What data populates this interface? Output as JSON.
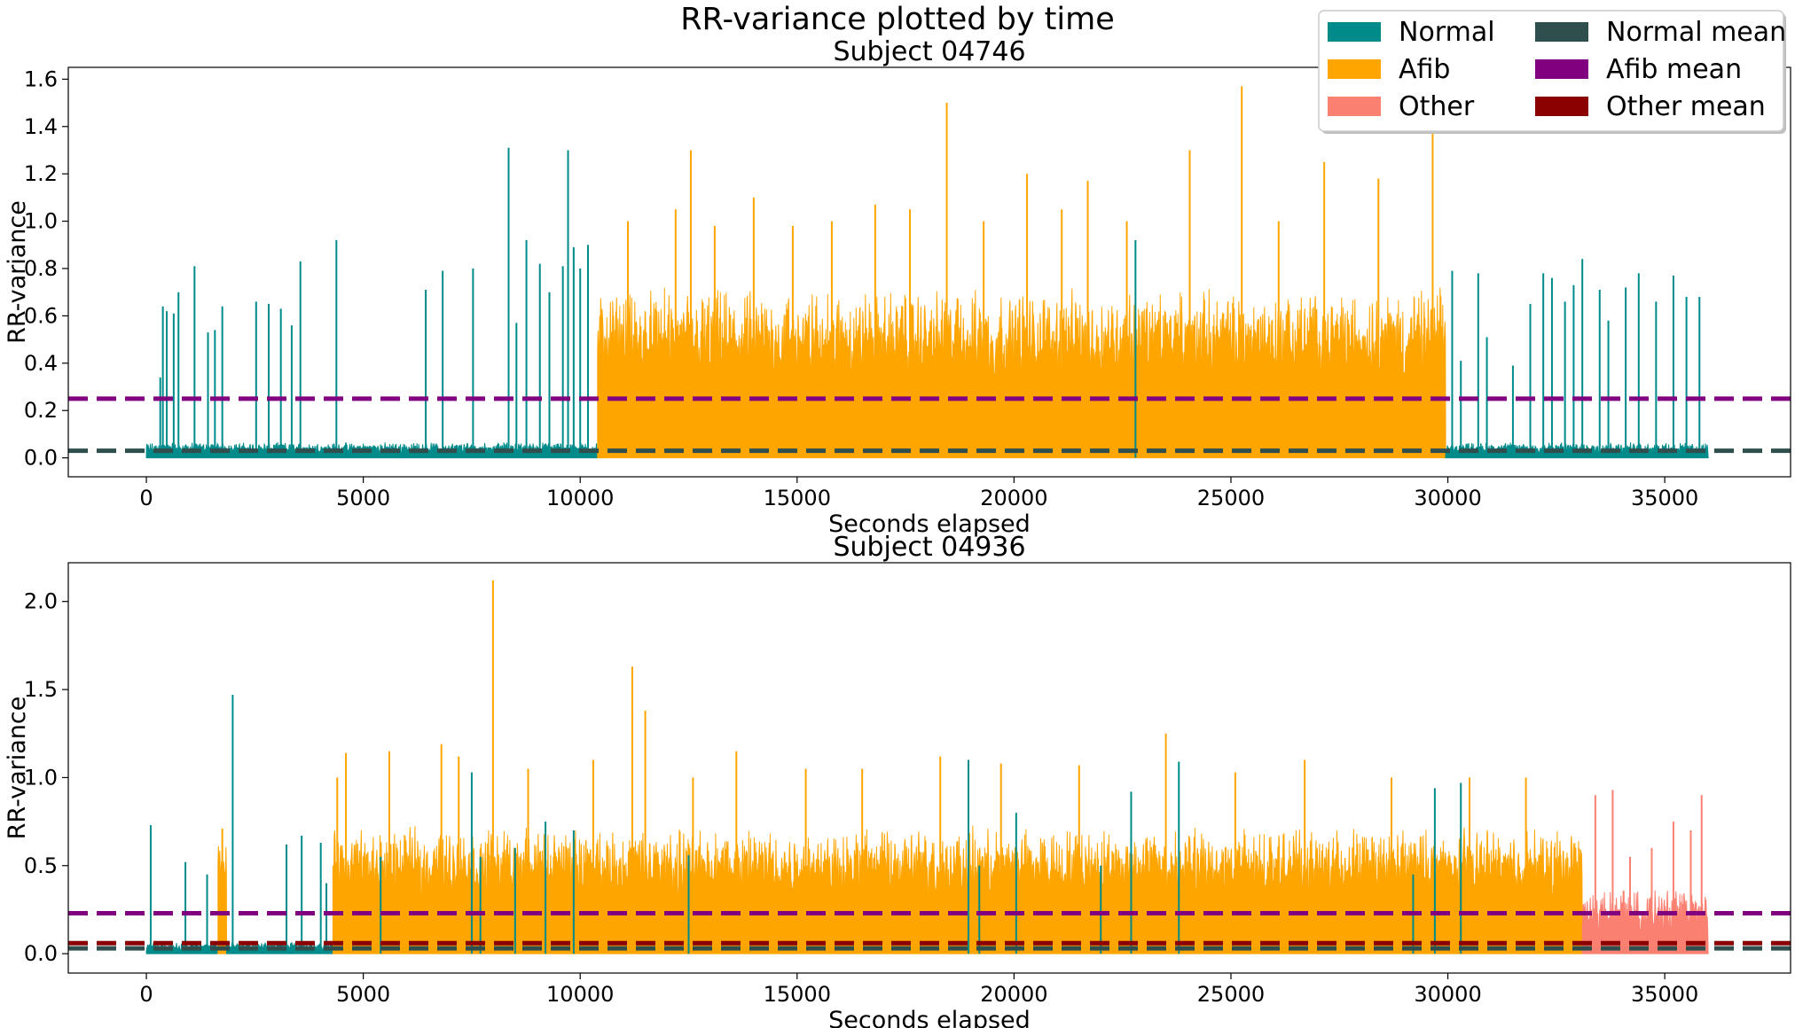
{
  "figure": {
    "title": "RR-variance plotted by time"
  },
  "legend": {
    "placement": "upper-right",
    "columns": 2,
    "entries": [
      {
        "label": "Normal",
        "color": "#008B8B"
      },
      {
        "label": "Afib",
        "color": "#FFA500"
      },
      {
        "label": "Other",
        "color": "#FA8072"
      },
      {
        "label": "Normal mean",
        "color": "#2F4F4F"
      },
      {
        "label": "Afib mean",
        "color": "#800080"
      },
      {
        "label": "Other mean",
        "color": "#8B0000"
      }
    ]
  },
  "chart_data": [
    {
      "type": "area",
      "title": "Subject 04746",
      "xlabel": "Seconds elapsed",
      "ylabel": "RR-variance",
      "xlim": [
        -1800,
        37900
      ],
      "ylim": [
        -0.08,
        1.65
      ],
      "xticks": [
        0,
        5000,
        10000,
        15000,
        20000,
        25000,
        30000,
        35000
      ],
      "xtick_labels": [
        "0",
        "5000",
        "10000",
        "15000",
        "20000",
        "25000",
        "30000",
        "35000"
      ],
      "yticks": [
        0.0,
        0.2,
        0.4,
        0.6,
        0.8,
        1.0,
        1.2,
        1.4,
        1.6
      ],
      "ytick_labels": [
        "0.0",
        "0.2",
        "0.4",
        "0.6",
        "0.8",
        "1.0",
        "1.2",
        "1.4",
        "1.6"
      ],
      "grid": false,
      "segments": [
        {
          "class": "Normal",
          "start": 0,
          "end": 10400
        },
        {
          "class": "Afib",
          "start": 10400,
          "end": 29950
        },
        {
          "class": "Normal",
          "start": 29950,
          "end": 36000
        }
      ],
      "spikes": [
        {
          "class": "Normal",
          "x": 320,
          "y": 0.34
        },
        {
          "class": "Normal",
          "x": 380,
          "y": 0.64
        },
        {
          "class": "Normal",
          "x": 470,
          "y": 0.62
        },
        {
          "class": "Normal",
          "x": 630,
          "y": 0.61
        },
        {
          "class": "Normal",
          "x": 740,
          "y": 0.7
        },
        {
          "class": "Normal",
          "x": 1110,
          "y": 0.81
        },
        {
          "class": "Normal",
          "x": 1420,
          "y": 0.53
        },
        {
          "class": "Normal",
          "x": 1580,
          "y": 0.54
        },
        {
          "class": "Normal",
          "x": 1750,
          "y": 0.64
        },
        {
          "class": "Normal",
          "x": 2530,
          "y": 0.66
        },
        {
          "class": "Normal",
          "x": 2820,
          "y": 0.65
        },
        {
          "class": "Normal",
          "x": 3100,
          "y": 0.63
        },
        {
          "class": "Normal",
          "x": 3350,
          "y": 0.56
        },
        {
          "class": "Normal",
          "x": 3550,
          "y": 0.83
        },
        {
          "class": "Normal",
          "x": 4380,
          "y": 0.92
        },
        {
          "class": "Normal",
          "x": 6440,
          "y": 0.71
        },
        {
          "class": "Normal",
          "x": 6830,
          "y": 0.79
        },
        {
          "class": "Normal",
          "x": 7530,
          "y": 0.8
        },
        {
          "class": "Normal",
          "x": 8350,
          "y": 1.31
        },
        {
          "class": "Normal",
          "x": 8530,
          "y": 0.57
        },
        {
          "class": "Normal",
          "x": 8760,
          "y": 0.92
        },
        {
          "class": "Normal",
          "x": 9070,
          "y": 0.82
        },
        {
          "class": "Normal",
          "x": 9290,
          "y": 0.7
        },
        {
          "class": "Normal",
          "x": 9600,
          "y": 0.81
        },
        {
          "class": "Normal",
          "x": 9720,
          "y": 1.3
        },
        {
          "class": "Normal",
          "x": 9850,
          "y": 0.89
        },
        {
          "class": "Normal",
          "x": 10000,
          "y": 0.8
        },
        {
          "class": "Normal",
          "x": 10180,
          "y": 0.9
        },
        {
          "class": "Afib",
          "x": 11100,
          "y": 1.0
        },
        {
          "class": "Afib",
          "x": 12200,
          "y": 1.05
        },
        {
          "class": "Afib",
          "x": 12550,
          "y": 1.3
        },
        {
          "class": "Afib",
          "x": 13100,
          "y": 0.98
        },
        {
          "class": "Afib",
          "x": 14000,
          "y": 1.1
        },
        {
          "class": "Afib",
          "x": 14900,
          "y": 0.98
        },
        {
          "class": "Afib",
          "x": 15800,
          "y": 1.0
        },
        {
          "class": "Afib",
          "x": 16800,
          "y": 1.07
        },
        {
          "class": "Afib",
          "x": 17600,
          "y": 1.05
        },
        {
          "class": "Afib",
          "x": 18450,
          "y": 1.5
        },
        {
          "class": "Afib",
          "x": 19300,
          "y": 1.0
        },
        {
          "class": "Afib",
          "x": 20300,
          "y": 1.2
        },
        {
          "class": "Afib",
          "x": 21100,
          "y": 1.05
        },
        {
          "class": "Afib",
          "x": 21700,
          "y": 1.17
        },
        {
          "class": "Afib",
          "x": 22600,
          "y": 1.0
        },
        {
          "class": "Afib",
          "x": 24050,
          "y": 1.3
        },
        {
          "class": "Afib",
          "x": 25250,
          "y": 1.57
        },
        {
          "class": "Afib",
          "x": 26100,
          "y": 1.0
        },
        {
          "class": "Afib",
          "x": 27150,
          "y": 1.25
        },
        {
          "class": "Afib",
          "x": 28400,
          "y": 1.18
        },
        {
          "class": "Afib",
          "x": 29650,
          "y": 1.38
        },
        {
          "class": "Normal",
          "x": 22800,
          "y": 0.92
        },
        {
          "class": "Normal",
          "x": 30100,
          "y": 0.79
        },
        {
          "class": "Normal",
          "x": 30300,
          "y": 0.41
        },
        {
          "class": "Normal",
          "x": 30700,
          "y": 0.78
        },
        {
          "class": "Normal",
          "x": 30900,
          "y": 0.51
        },
        {
          "class": "Normal",
          "x": 31500,
          "y": 0.39
        },
        {
          "class": "Normal",
          "x": 31900,
          "y": 0.65
        },
        {
          "class": "Normal",
          "x": 32200,
          "y": 0.78
        },
        {
          "class": "Normal",
          "x": 32400,
          "y": 0.76
        },
        {
          "class": "Normal",
          "x": 32700,
          "y": 0.66
        },
        {
          "class": "Normal",
          "x": 32900,
          "y": 0.73
        },
        {
          "class": "Normal",
          "x": 33100,
          "y": 0.84
        },
        {
          "class": "Normal",
          "x": 33500,
          "y": 0.71
        },
        {
          "class": "Normal",
          "x": 33700,
          "y": 0.58
        },
        {
          "class": "Normal",
          "x": 34100,
          "y": 0.72
        },
        {
          "class": "Normal",
          "x": 34400,
          "y": 0.78
        },
        {
          "class": "Normal",
          "x": 34800,
          "y": 0.66
        },
        {
          "class": "Normal",
          "x": 35200,
          "y": 0.77
        },
        {
          "class": "Normal",
          "x": 35500,
          "y": 0.68
        },
        {
          "class": "Normal",
          "x": 35800,
          "y": 0.68
        }
      ],
      "means": [
        {
          "class": "Normal mean",
          "value": 0.03
        },
        {
          "class": "Afib mean",
          "value": 0.25
        }
      ]
    },
    {
      "type": "area",
      "title": "Subject 04936",
      "xlabel": "Seconds elapsed",
      "ylabel": "RR-variance",
      "xlim": [
        -1800,
        37900
      ],
      "ylim": [
        -0.11,
        2.22
      ],
      "xticks": [
        0,
        5000,
        10000,
        15000,
        20000,
        25000,
        30000,
        35000
      ],
      "xtick_labels": [
        "0",
        "5000",
        "10000",
        "15000",
        "20000",
        "25000",
        "30000",
        "35000"
      ],
      "yticks": [
        0.0,
        0.5,
        1.0,
        1.5,
        2.0
      ],
      "ytick_labels": [
        "0.0",
        "0.5",
        "1.0",
        "1.5",
        "2.0"
      ],
      "grid": false,
      "segments": [
        {
          "class": "Normal",
          "start": 0,
          "end": 1650
        },
        {
          "class": "Afib",
          "start": 1650,
          "end": 1850
        },
        {
          "class": "Normal",
          "start": 1850,
          "end": 4300
        },
        {
          "class": "Afib",
          "start": 4300,
          "end": 33100
        },
        {
          "class": "Other",
          "start": 33100,
          "end": 36000
        }
      ],
      "spikes": [
        {
          "class": "Normal",
          "x": 100,
          "y": 0.73
        },
        {
          "class": "Normal",
          "x": 900,
          "y": 0.52
        },
        {
          "class": "Normal",
          "x": 1400,
          "y": 0.45
        },
        {
          "class": "Afib",
          "x": 1750,
          "y": 0.71
        },
        {
          "class": "Normal",
          "x": 1990,
          "y": 1.47
        },
        {
          "class": "Normal",
          "x": 3230,
          "y": 0.62
        },
        {
          "class": "Normal",
          "x": 3580,
          "y": 0.67
        },
        {
          "class": "Afib",
          "x": 4400,
          "y": 1.0
        },
        {
          "class": "Afib",
          "x": 4600,
          "y": 1.14
        },
        {
          "class": "Afib",
          "x": 5600,
          "y": 1.15
        },
        {
          "class": "Afib",
          "x": 6800,
          "y": 1.19
        },
        {
          "class": "Afib",
          "x": 7200,
          "y": 1.12
        },
        {
          "class": "Afib",
          "x": 7990,
          "y": 2.12
        },
        {
          "class": "Afib",
          "x": 8800,
          "y": 1.05
        },
        {
          "class": "Afib",
          "x": 10300,
          "y": 1.1
        },
        {
          "class": "Afib",
          "x": 11200,
          "y": 1.63
        },
        {
          "class": "Afib",
          "x": 11500,
          "y": 1.38
        },
        {
          "class": "Afib",
          "x": 12600,
          "y": 1.0
        },
        {
          "class": "Afib",
          "x": 13600,
          "y": 1.15
        },
        {
          "class": "Afib",
          "x": 15200,
          "y": 1.05
        },
        {
          "class": "Afib",
          "x": 16500,
          "y": 1.05
        },
        {
          "class": "Afib",
          "x": 18300,
          "y": 1.12
        },
        {
          "class": "Afib",
          "x": 19700,
          "y": 1.08
        },
        {
          "class": "Afib",
          "x": 21500,
          "y": 1.07
        },
        {
          "class": "Afib",
          "x": 23500,
          "y": 1.25
        },
        {
          "class": "Afib",
          "x": 25100,
          "y": 1.03
        },
        {
          "class": "Afib",
          "x": 26700,
          "y": 1.1
        },
        {
          "class": "Afib",
          "x": 28700,
          "y": 1.0
        },
        {
          "class": "Afib",
          "x": 30500,
          "y": 1.0
        },
        {
          "class": "Afib",
          "x": 31800,
          "y": 1.0
        },
        {
          "class": "Normal",
          "x": 4020,
          "y": 0.63
        },
        {
          "class": "Normal",
          "x": 4150,
          "y": 0.4
        },
        {
          "class": "Normal",
          "x": 5400,
          "y": 0.55
        },
        {
          "class": "Normal",
          "x": 7500,
          "y": 1.03
        },
        {
          "class": "Normal",
          "x": 7700,
          "y": 0.55
        },
        {
          "class": "Normal",
          "x": 8500,
          "y": 0.6
        },
        {
          "class": "Normal",
          "x": 9200,
          "y": 0.75
        },
        {
          "class": "Normal",
          "x": 9850,
          "y": 0.7
        },
        {
          "class": "Normal",
          "x": 12500,
          "y": 0.56
        },
        {
          "class": "Normal",
          "x": 18950,
          "y": 1.1
        },
        {
          "class": "Normal",
          "x": 19200,
          "y": 0.5
        },
        {
          "class": "Normal",
          "x": 20050,
          "y": 0.8
        },
        {
          "class": "Normal",
          "x": 22000,
          "y": 0.5
        },
        {
          "class": "Normal",
          "x": 22700,
          "y": 0.92
        },
        {
          "class": "Normal",
          "x": 23800,
          "y": 1.09
        },
        {
          "class": "Normal",
          "x": 29200,
          "y": 0.45
        },
        {
          "class": "Normal",
          "x": 29700,
          "y": 0.94
        },
        {
          "class": "Normal",
          "x": 30300,
          "y": 0.97
        },
        {
          "class": "Other",
          "x": 33400,
          "y": 0.9
        },
        {
          "class": "Other",
          "x": 33800,
          "y": 0.93
        },
        {
          "class": "Other",
          "x": 34200,
          "y": 0.55
        },
        {
          "class": "Other",
          "x": 34700,
          "y": 0.6
        },
        {
          "class": "Other",
          "x": 35200,
          "y": 0.75
        },
        {
          "class": "Other",
          "x": 35600,
          "y": 0.7
        },
        {
          "class": "Other",
          "x": 35850,
          "y": 0.9
        }
      ],
      "means": [
        {
          "class": "Normal mean",
          "value": 0.03
        },
        {
          "class": "Afib mean",
          "value": 0.23
        },
        {
          "class": "Other mean",
          "value": 0.06
        }
      ]
    }
  ]
}
